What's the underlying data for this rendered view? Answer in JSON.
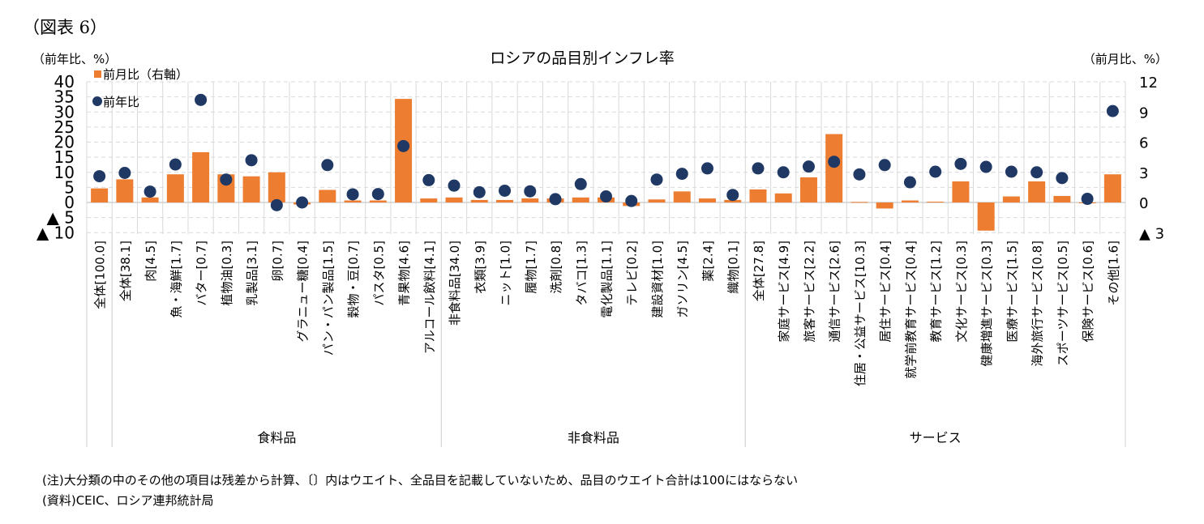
{
  "figure_label": "（図表 6）",
  "notes": [
    "(注)大分類の中のその他の項目は残差から計算、〔〕内はウエイト、全品目を記載していないため、品目のウエイト合計は100にはならない",
    "(資料)CEIC、ロシア連邦統計局"
  ],
  "chart_data": {
    "type": "bar+scatter",
    "title": "ロシアの品目別インフレ率",
    "left_unit": "（前年比、%）",
    "right_unit": "（前月比、%）",
    "left_axis": {
      "range": [
        -10,
        40
      ],
      "ticks": [
        40,
        35,
        30,
        25,
        20,
        15,
        10,
        5,
        0,
        -5,
        -10
      ],
      "tick_labels": [
        "40",
        "35",
        "30",
        "25",
        "20",
        "15",
        "10",
        "5",
        "0",
        "▲ 5",
        "▲ 10"
      ]
    },
    "right_axis": {
      "range": [
        -3,
        12
      ],
      "ticks": [
        12,
        9,
        6,
        3,
        0,
        -3
      ],
      "tick_labels": [
        "12",
        "9",
        "6",
        "3",
        "0",
        "▲ 3"
      ]
    },
    "grid": true,
    "legend_position": "top-left",
    "colors": {
      "bar": "#ED7D31",
      "dot": "#1F3864",
      "grid": "#d9d9d9"
    },
    "series": [
      {
        "name": "前月比（右軸）",
        "type": "bar",
        "axis": "right",
        "values": [
          1.4,
          2.3,
          0.5,
          2.8,
          5.0,
          2.8,
          2.6,
          3.0,
          -0.2,
          1.25,
          0.2,
          0.2,
          10.3,
          0.4,
          0.5,
          0.25,
          0.25,
          0.4,
          0.4,
          0.5,
          0.5,
          -0.35,
          0.3,
          1.1,
          0.4,
          0.25,
          1.3,
          0.9,
          2.5,
          6.8,
          0.05,
          -0.6,
          0.2,
          0.08,
          2.1,
          -2.8,
          0.6,
          2.1,
          0.65,
          0.0,
          2.8
        ]
      },
      {
        "name": "前年比",
        "type": "scatter",
        "axis": "left",
        "values": [
          8.7,
          9.8,
          3.6,
          12.6,
          34.0,
          7.6,
          14.0,
          -0.9,
          0.0,
          12.4,
          2.7,
          2.8,
          18.7,
          7.4,
          5.6,
          3.4,
          3.9,
          3.7,
          1.1,
          6.1,
          2.0,
          0.5,
          7.6,
          9.5,
          11.3,
          2.5,
          11.3,
          10.0,
          11.9,
          13.5,
          9.3,
          12.4,
          6.7,
          10.2,
          12.8,
          11.8,
          10.2,
          10.0,
          8.1,
          1.2,
          30.3
        ]
      }
    ],
    "categories": [
      "全体[100.0]",
      "全体[38.1]",
      "肉[4.5]",
      "魚・海鮮[1.7]",
      "バター[0.7]",
      "植物油[0.3]",
      "乳製品[3.1]",
      "卵[0.7]",
      "グラニュー糖[0.4]",
      "パン・パン製品[1.5]",
      "穀物・豆[0.7]",
      "パスタ[0.5]",
      "青果物[4.6]",
      "アルコール飲料[4.1]",
      "非食料品[34.0]",
      "衣類[3.9]",
      "ニット[1.0]",
      "履物[1.7]",
      "洗剤[0.8]",
      "タバコ[1.3]",
      "電化製品[1.1]",
      "テレビ[0.2]",
      "建設資材[1.0]",
      "ガソリン[4.5]",
      "薬[2.4]",
      "織物[0.1]",
      "全体[27.8]",
      "家庭サービス[4.9]",
      "旅客サービス[2.2]",
      "通信サービス[2.6]",
      "住居・公益サービス[10.3]",
      "居住サービス[0.4]",
      "就学前教育サービス[0.4]",
      "教育サービス[1.2]",
      "文化サービス[0.3]",
      "健康増進サービス[0.3]",
      "医療サービス[1.5]",
      "海外旅行サービス[0.8]",
      "スポーツサービス[0.5]",
      "保険サービス[0.6]",
      "その他[1.6]"
    ],
    "groups": [
      {
        "label": "",
        "start": 0,
        "end": 0
      },
      {
        "label": "食料品",
        "start": 1,
        "end": 13
      },
      {
        "label": "非食料品",
        "start": 14,
        "end": 25
      },
      {
        "label": "サービス",
        "start": 26,
        "end": 40
      }
    ]
  }
}
